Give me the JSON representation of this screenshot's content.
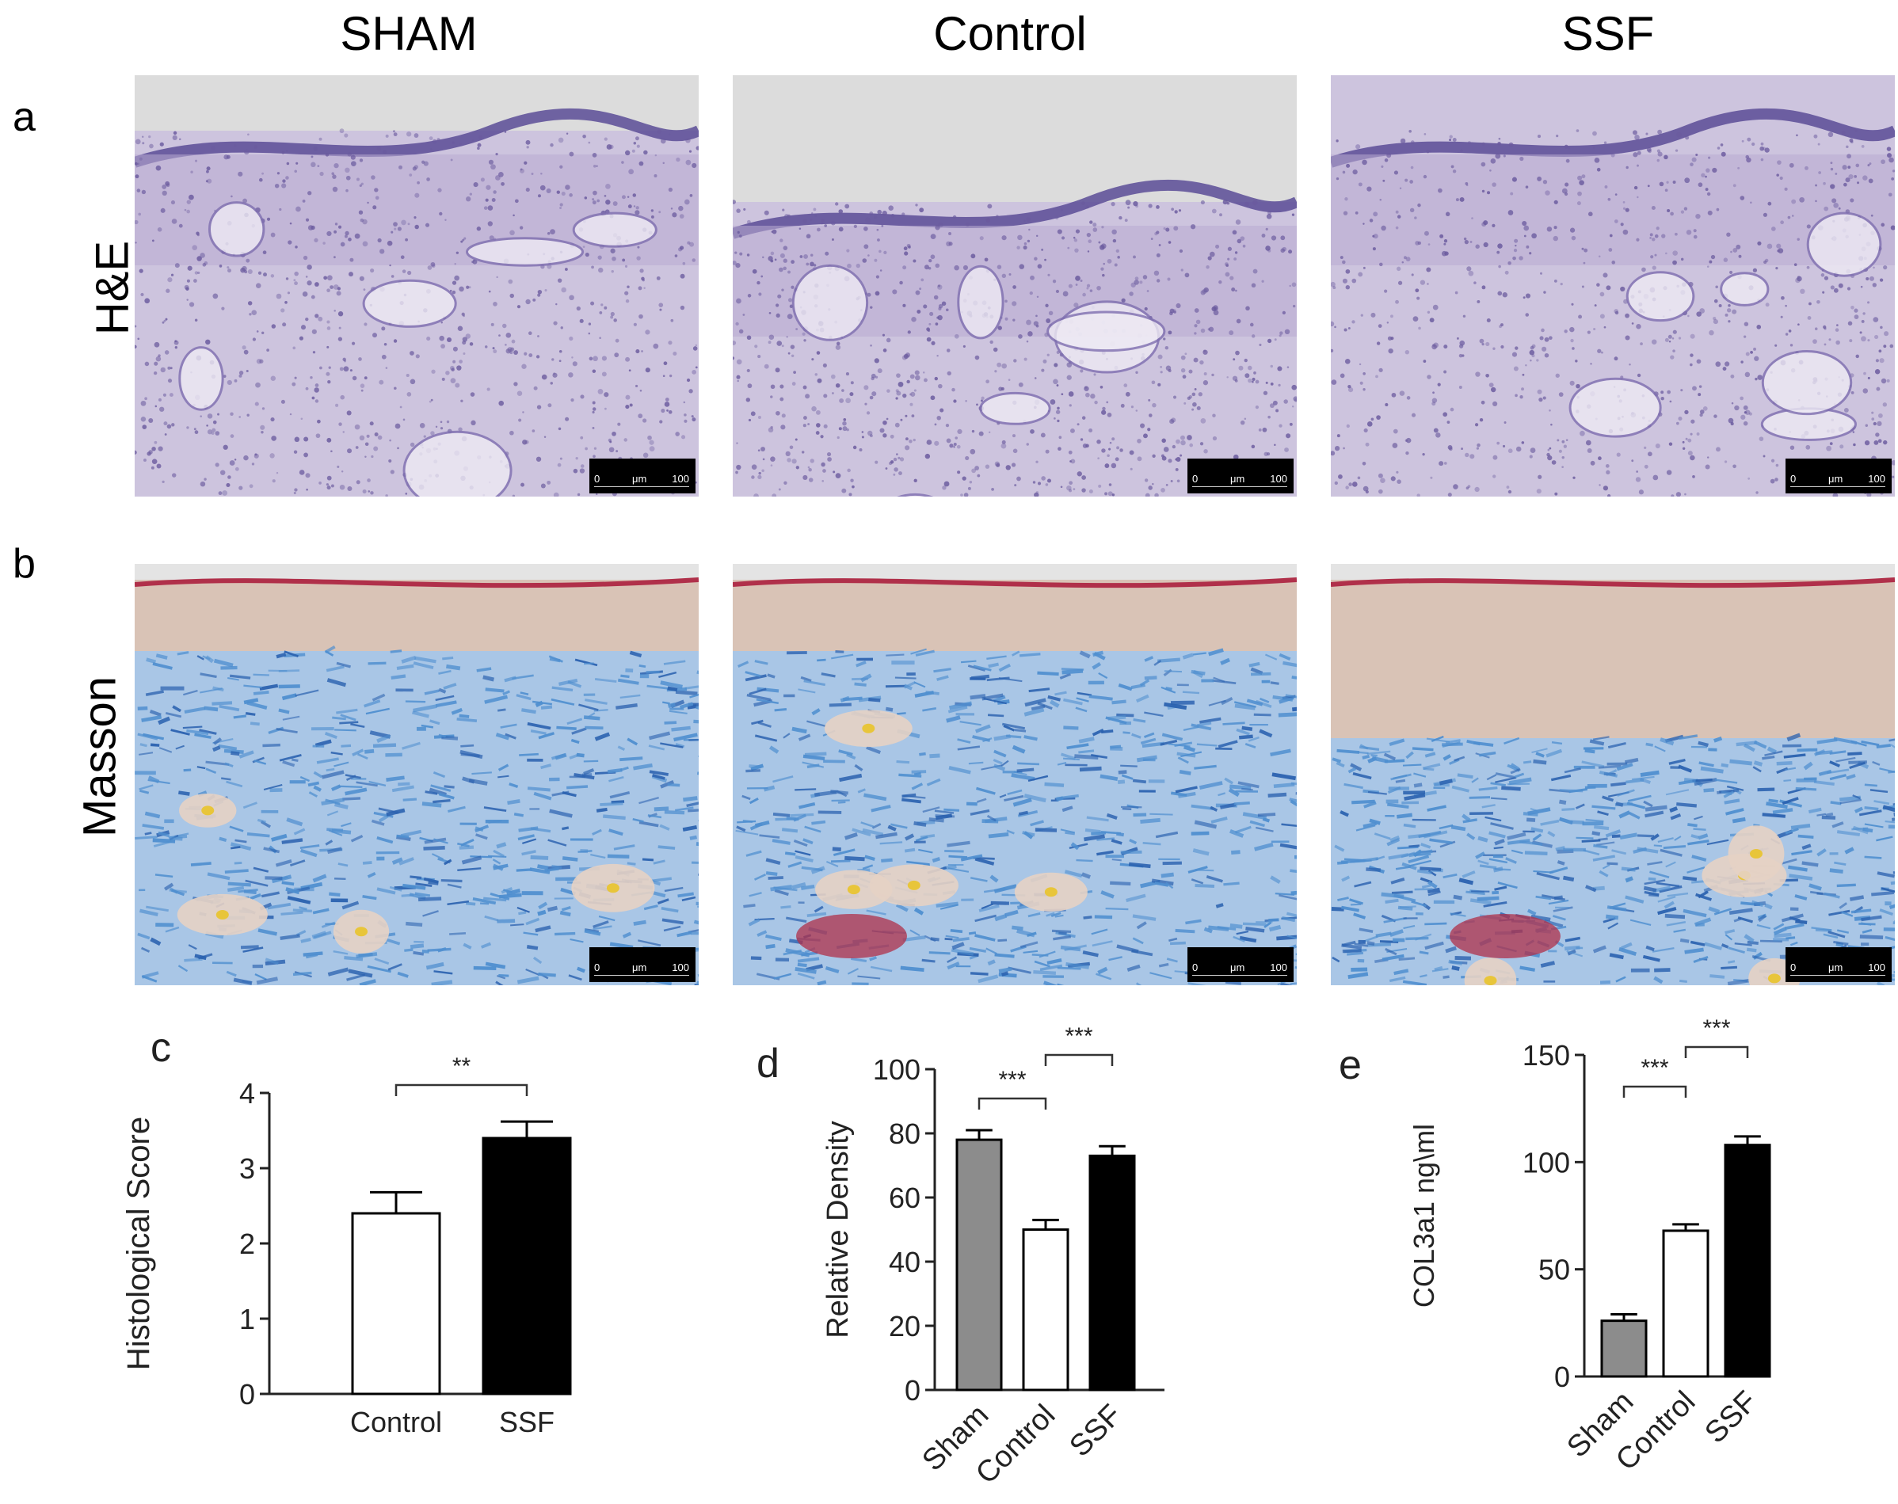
{
  "figure": {
    "columns": [
      "SHAM",
      "Control",
      "SSF"
    ],
    "rows": [
      {
        "letter": "a",
        "label": "H&E"
      },
      {
        "letter": "b",
        "label": "Masson"
      }
    ],
    "scale_bar": {
      "start": "0",
      "unit": "μm",
      "end": "100"
    },
    "colors": {
      "he_background": "#b9acd2",
      "he_nuclei": "#6a5a9e",
      "masson_collagen": "#4f8fd0",
      "masson_epidermis": "#d9c3b6",
      "masson_red": "#b0304a"
    }
  },
  "chart_data": [
    {
      "panel": "c",
      "type": "bar",
      "categories": [
        "Control",
        "SSF"
      ],
      "values": [
        2.4,
        3.4
      ],
      "errors": [
        0.28,
        0.22
      ],
      "bar_fill": [
        "#ffffff",
        "#000000"
      ],
      "ylabel": "Histological  Score",
      "ylim": [
        0,
        4
      ],
      "yticks": [
        "0",
        "1",
        "2",
        "3",
        "4"
      ],
      "significance": [
        {
          "from": 0,
          "to": 1,
          "label": "**"
        }
      ]
    },
    {
      "panel": "d",
      "type": "bar",
      "categories": [
        "Sham",
        "Control",
        "SSF"
      ],
      "values": [
        78,
        50,
        73
      ],
      "errors": [
        3,
        3,
        3
      ],
      "bar_fill": [
        "#8c8c8c",
        "#ffffff",
        "#000000"
      ],
      "ylabel": "Relative Density",
      "ylim": [
        0,
        100
      ],
      "yticks": [
        "0",
        "20",
        "40",
        "60",
        "80",
        "100"
      ],
      "significance": [
        {
          "from": 0,
          "to": 1,
          "label": "***"
        },
        {
          "from": 1,
          "to": 2,
          "label": "***"
        }
      ]
    },
    {
      "panel": "e",
      "type": "bar",
      "categories": [
        "Sham",
        "Control",
        "SSF"
      ],
      "values": [
        26,
        68,
        108
      ],
      "errors": [
        3,
        3,
        4
      ],
      "bar_fill": [
        "#8c8c8c",
        "#ffffff",
        "#000000"
      ],
      "ylabel": "COL3a1 ng\\ml",
      "ylim": [
        0,
        150
      ],
      "yticks": [
        "0",
        "50",
        "100",
        "150"
      ],
      "significance": [
        {
          "from": 0,
          "to": 1,
          "label": "***"
        },
        {
          "from": 1,
          "to": 2,
          "label": "***"
        }
      ]
    }
  ]
}
